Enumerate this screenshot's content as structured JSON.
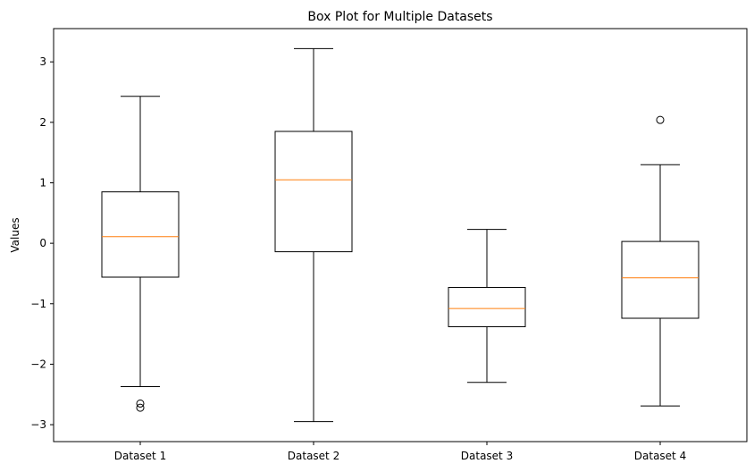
{
  "chart_data": {
    "type": "box",
    "title": "Box Plot for Multiple Datasets",
    "xlabel": "",
    "ylabel": "Values",
    "ylim": [
      -3.28,
      3.55
    ],
    "yticks": [
      -3,
      -2,
      -1,
      0,
      1,
      2,
      3
    ],
    "ytick_labels": [
      "−3",
      "−2",
      "−1",
      "0",
      "1",
      "2",
      "3"
    ],
    "grid": false,
    "categories": [
      "Dataset 1",
      "Dataset 2",
      "Dataset 3",
      "Dataset 4"
    ],
    "boxes": [
      {
        "name": "Dataset 1",
        "whisker_low": -2.37,
        "q1": -0.56,
        "median": 0.11,
        "q3": 0.85,
        "whisker_high": 2.43,
        "outliers": [
          -2.65,
          -2.72
        ]
      },
      {
        "name": "Dataset 2",
        "whisker_low": -2.95,
        "q1": -0.14,
        "median": 1.05,
        "q3": 1.85,
        "whisker_high": 3.22,
        "outliers": []
      },
      {
        "name": "Dataset 3",
        "whisker_low": -2.3,
        "q1": -1.38,
        "median": -1.08,
        "q3": -0.73,
        "whisker_high": 0.23,
        "outliers": []
      },
      {
        "name": "Dataset 4",
        "whisker_low": -2.69,
        "q1": -1.24,
        "median": -0.57,
        "q3": 0.03,
        "whisker_high": 1.3,
        "outliers": [
          2.04
        ]
      }
    ],
    "colors": {
      "box": "#000000",
      "median": "#ff7f0e",
      "outlier": "#000000"
    }
  }
}
